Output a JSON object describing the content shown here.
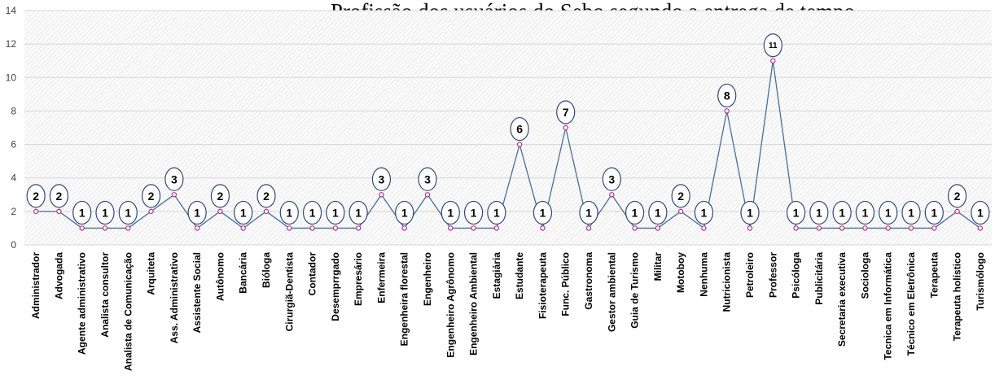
{
  "chart_data": {
    "type": "line",
    "title": "Profissão dos usuários do Sebo segundo a entrega de tempo",
    "xlabel": "",
    "ylabel": "",
    "ylim": [
      0,
      14
    ],
    "yticks": [
      "0",
      "2",
      "4",
      "6",
      "8",
      "10",
      "12",
      "14"
    ],
    "grid": true,
    "legend": "none",
    "line_color": "#4a6f96",
    "marker_color": "#b0308c",
    "label_circle_color": "#2f4b76",
    "categories": [
      "Administrador",
      "Advogada",
      "Agente administrativo",
      "Analista consultor",
      "Analista de Comunicação",
      "Arquiteta",
      "Ass. Administrativo",
      "Assistente Social",
      "Autônomo",
      "Bancária",
      "Bióloga",
      "Cirurgiã-Dentista",
      "Contador",
      "Desemprrgado",
      "Empresário",
      "Enfermeira",
      "Engenheira florestal",
      "Engenheiro",
      "Engenheiro Agrônomo",
      "Engenheiro Ambiental",
      "Estagiária",
      "Estudante",
      "Fisioterapeuta",
      "Func. Público",
      "Gastronoma",
      "Gestor ambiental",
      "Guia de Turismo",
      "Militar",
      "Motoboy",
      "Nenhuma",
      "Nutricionista",
      "Petroleiro",
      "Professor",
      "Psicóloga",
      "Publicitária",
      "Secretaria executiva",
      "Sociologa",
      "Tecnica em Informática",
      "Técnico em Eletrônica",
      "Terapeuta",
      "Terapeuta holístico",
      "Turismólogo"
    ],
    "series": [
      {
        "values": [
          2,
          2,
          1,
          1,
          1,
          2,
          3,
          1,
          2,
          1,
          2,
          1,
          1,
          1,
          1,
          3,
          1,
          3,
          1,
          1,
          1,
          6,
          1,
          7,
          1,
          3,
          1,
          1,
          2,
          1,
          8,
          1,
          11,
          1,
          1,
          1,
          1,
          1,
          1,
          1,
          2,
          1
        ],
        "labels": [
          "2",
          "2",
          "1",
          "1",
          "1",
          "2",
          "3",
          "1",
          "2",
          "1",
          "2",
          "1",
          "1",
          "1",
          "1",
          "3",
          "1",
          "3",
          "1",
          "1",
          "1",
          "6",
          "1",
          "7",
          "1",
          "3",
          "1",
          "1",
          "2",
          "1",
          "8",
          "1",
          "11",
          "1",
          "1",
          "1",
          "1",
          "1",
          "1",
          "1",
          "2",
          "1"
        ]
      }
    ]
  }
}
